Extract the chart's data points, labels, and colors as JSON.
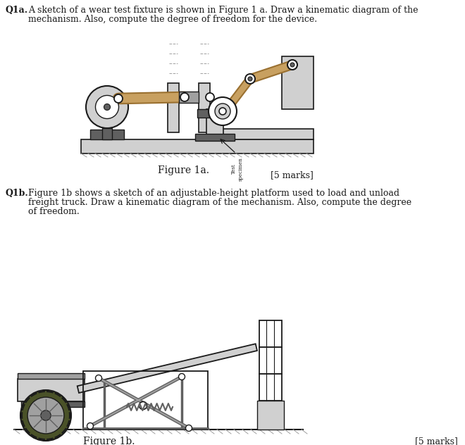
{
  "bg_color": "#ffffff",
  "text_color": "#1a1a1a",
  "steel_lt": "#d0d0d0",
  "steel_md": "#a0a0a0",
  "steel_dk": "#606060",
  "beam_tan": "#c8a060",
  "beam_drk": "#9a7030",
  "olive": "#4a5228",
  "line_c": "#1a1a1a",
  "white": "#ffffff",
  "fig1a_label": "Figure 1a.",
  "fig1b_label": "Figure 1b.",
  "marks": "[5 marks]"
}
